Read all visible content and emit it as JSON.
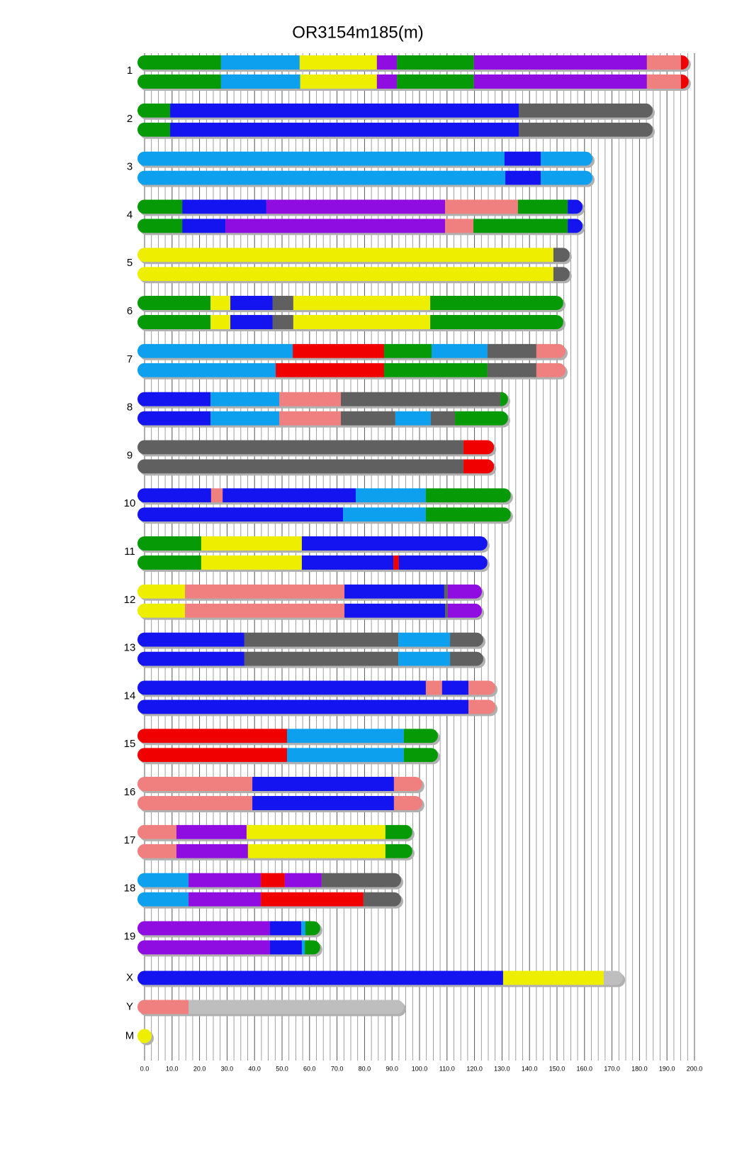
{
  "chart_data": {
    "type": "chromosome",
    "title": "OR3154m185(m)",
    "xlim": [
      0,
      200
    ],
    "xticks": [
      {
        "value": 0,
        "label": "0.0"
      },
      {
        "value": 10,
        "label": "10.0"
      },
      {
        "value": 20,
        "label": "20.0"
      },
      {
        "value": 30,
        "label": "30.0"
      },
      {
        "value": 40,
        "label": "40.0"
      },
      {
        "value": 50,
        "label": "50.0"
      },
      {
        "value": 60,
        "label": "60.0"
      },
      {
        "value": 70,
        "label": "70.0"
      },
      {
        "value": 80,
        "label": "80.0"
      },
      {
        "value": 90,
        "label": "90.0"
      },
      {
        "value": 100,
        "label": "100.0"
      },
      {
        "value": 110,
        "label": "110.0"
      },
      {
        "value": 120,
        "label": "120.0"
      },
      {
        "value": 130,
        "label": "130.0"
      },
      {
        "value": 140,
        "label": "140.0"
      },
      {
        "value": 150,
        "label": "150.0"
      },
      {
        "value": 160,
        "label": "160.0"
      },
      {
        "value": 170,
        "label": "170.0"
      },
      {
        "value": 180,
        "label": "180.0"
      },
      {
        "value": 190,
        "label": "190.0"
      },
      {
        "value": 200,
        "label": "200.0"
      }
    ],
    "minor_grid_step": 2.5,
    "chromosomes": [
      {
        "name": "1",
        "haplotypes": [
          {
            "ends": [
              27.8,
              56.4,
              84.5,
              91.8,
              119.8,
              182.7,
              195.1,
              197.9
            ],
            "colors": [
              "#079a07",
              "#0ca0ef",
              "#eeee00",
              "#8f0de0",
              "#079a07",
              "#8f0de0",
              "#f08080",
              "#f00000"
            ]
          },
          {
            "ends": [
              27.8,
              56.6,
              84.5,
              91.8,
              119.8,
              182.7,
              195.1,
              197.9
            ],
            "colors": [
              "#079a07",
              "#0ca0ef",
              "#eeee00",
              "#8f0de0",
              "#079a07",
              "#8f0de0",
              "#f08080",
              "#f00000"
            ]
          }
        ]
      },
      {
        "name": "2",
        "haplotypes": [
          {
            "ends": [
              9.3,
              136.1,
              184.8
            ],
            "colors": [
              "#079a07",
              "#1414f0",
              "#606060"
            ]
          },
          {
            "ends": [
              9.3,
              136.1,
              184.8
            ],
            "colors": [
              "#079a07",
              "#1414f0",
              "#606060"
            ]
          }
        ]
      },
      {
        "name": "3",
        "haplotypes": [
          {
            "ends": [
              130.9,
              144.1,
              162.9
            ],
            "colors": [
              "#0ca0ef",
              "#1414f0",
              "#0ca0ef"
            ]
          },
          {
            "ends": [
              131.2,
              144.1,
              162.9
            ],
            "colors": [
              "#0ca0ef",
              "#1414f0",
              "#0ca0ef"
            ]
          }
        ]
      },
      {
        "name": "4",
        "haplotypes": [
          {
            "ends": [
              13.7,
              44.3,
              109.3,
              135.8,
              153.9,
              159.3
            ],
            "colors": [
              "#079a07",
              "#1414f0",
              "#8f0de0",
              "#f08080",
              "#079a07",
              "#1414f0"
            ]
          },
          {
            "ends": [
              13.7,
              29.4,
              109.3,
              119.6,
              153.9,
              159.3
            ],
            "colors": [
              "#079a07",
              "#1414f0",
              "#8f0de0",
              "#f08080",
              "#079a07",
              "#1414f0"
            ]
          }
        ]
      },
      {
        "name": "5",
        "haplotypes": [
          {
            "ends": [
              148.7,
              154.6
            ],
            "colors": [
              "#eeee00",
              "#606060"
            ]
          },
          {
            "ends": [
              148.7,
              154.6
            ],
            "colors": [
              "#eeee00",
              "#606060"
            ]
          }
        ]
      },
      {
        "name": "6",
        "haplotypes": [
          {
            "ends": [
              24.0,
              31.2,
              46.6,
              54.1,
              103.9,
              152.3
            ],
            "colors": [
              "#079a07",
              "#eeee00",
              "#1414f0",
              "#606060",
              "#eeee00",
              "#079a07"
            ]
          },
          {
            "ends": [
              24.0,
              31.2,
              46.6,
              54.1,
              103.9,
              152.3
            ],
            "colors": [
              "#079a07",
              "#eeee00",
              "#1414f0",
              "#606060",
              "#eeee00",
              "#079a07"
            ]
          }
        ]
      },
      {
        "name": "7",
        "haplotypes": [
          {
            "ends": [
              53.9,
              87.1,
              104.4,
              124.7,
              142.5,
              153.1
            ],
            "colors": [
              "#0ca0ef",
              "#f00000",
              "#079a07",
              "#0ca0ef",
              "#606060",
              "#f08080"
            ]
          },
          {
            "ends": [
              47.7,
              87.1,
              124.7,
              142.5,
              153.1
            ],
            "colors": [
              "#0ca0ef",
              "#f00000",
              "#079a07",
              "#606060",
              "#f08080"
            ]
          }
        ]
      },
      {
        "name": "8",
        "haplotypes": [
          {
            "ends": [
              24.0,
              49.0,
              71.4,
              129.4,
              132.2
            ],
            "colors": [
              "#1414f0",
              "#0ca0ef",
              "#f08080",
              "#606060",
              "#079a07"
            ]
          },
          {
            "ends": [
              24.0,
              49.0,
              71.4,
              91.2,
              104.1,
              112.9,
              132.2
            ],
            "colors": [
              "#1414f0",
              "#0ca0ef",
              "#f08080",
              "#606060",
              "#0ca0ef",
              "#606060",
              "#079a07"
            ]
          }
        ]
      },
      {
        "name": "9",
        "haplotypes": [
          {
            "ends": [
              116.0,
              127.1
            ],
            "colors": [
              "#606060",
              "#f00000"
            ]
          },
          {
            "ends": [
              116.0,
              127.1
            ],
            "colors": [
              "#606060",
              "#f00000"
            ]
          }
        ]
      },
      {
        "name": "10",
        "haplotypes": [
          {
            "ends": [
              24.2,
              28.4,
              76.8,
              102.3,
              133.2
            ],
            "colors": [
              "#1414f0",
              "#f08080",
              "#1414f0",
              "#0ca0ef",
              "#079a07"
            ]
          },
          {
            "ends": [
              72.2,
              102.3,
              133.2
            ],
            "colors": [
              "#1414f0",
              "#0ca0ef",
              "#079a07"
            ]
          }
        ]
      },
      {
        "name": "11",
        "haplotypes": [
          {
            "ends": [
              20.6,
              57.2,
              124.7
            ],
            "colors": [
              "#079a07",
              "#eeee00",
              "#1414f0"
            ]
          },
          {
            "ends": [
              20.6,
              57.2,
              90.5,
              92.5,
              124.7
            ],
            "colors": [
              "#079a07",
              "#eeee00",
              "#1414f0",
              "#f00000",
              "#1414f0"
            ]
          }
        ]
      },
      {
        "name": "12",
        "haplotypes": [
          {
            "ends": [
              14.7,
              72.7,
              109.0,
              110.3,
              122.7
            ],
            "colors": [
              "#eeee00",
              "#f08080",
              "#1414f0",
              "#606060",
              "#8f0de0"
            ]
          },
          {
            "ends": [
              14.7,
              72.7,
              109.3,
              110.3,
              122.7
            ],
            "colors": [
              "#eeee00",
              "#f08080",
              "#1414f0",
              "#606060",
              "#8f0de0"
            ]
          }
        ]
      },
      {
        "name": "13",
        "haplotypes": [
          {
            "ends": [
              36.3,
              92.3,
              111.1,
              123.2
            ],
            "colors": [
              "#1414f0",
              "#606060",
              "#0ca0ef",
              "#606060"
            ]
          },
          {
            "ends": [
              36.3,
              92.3,
              111.1,
              123.2
            ],
            "colors": [
              "#1414f0",
              "#606060",
              "#0ca0ef",
              "#606060"
            ]
          }
        ]
      },
      {
        "name": "14",
        "haplotypes": [
          {
            "ends": [
              102.3,
              108.2,
              117.8,
              127.6
            ],
            "colors": [
              "#1414f0",
              "#f08080",
              "#1414f0",
              "#f08080"
            ]
          },
          {
            "ends": [
              117.8,
              127.6
            ],
            "colors": [
              "#1414f0",
              "#f08080"
            ]
          }
        ]
      },
      {
        "name": "15",
        "haplotypes": [
          {
            "ends": [
              51.8,
              94.3,
              106.7
            ],
            "colors": [
              "#f00000",
              "#0ca0ef",
              "#079a07"
            ]
          },
          {
            "ends": [
              51.8,
              94.3,
              106.7
            ],
            "colors": [
              "#f00000",
              "#0ca0ef",
              "#079a07"
            ]
          }
        ]
      },
      {
        "name": "16",
        "haplotypes": [
          {
            "ends": [
              39.2,
              90.7,
              101.0
            ],
            "colors": [
              "#f08080",
              "#1414f0",
              "#f08080"
            ]
          },
          {
            "ends": [
              39.2,
              90.7,
              101.0
            ],
            "colors": [
              "#f08080",
              "#1414f0",
              "#f08080"
            ]
          }
        ]
      },
      {
        "name": "17",
        "haplotypes": [
          {
            "ends": [
              11.6,
              37.1,
              87.6,
              97.4
            ],
            "colors": [
              "#f08080",
              "#8f0de0",
              "#eeee00",
              "#079a07"
            ]
          },
          {
            "ends": [
              11.6,
              37.6,
              87.6,
              97.4
            ],
            "colors": [
              "#f08080",
              "#8f0de0",
              "#eeee00",
              "#079a07"
            ]
          }
        ]
      },
      {
        "name": "18",
        "haplotypes": [
          {
            "ends": [
              16.0,
              42.3,
              51.0,
              64.4,
              93.3
            ],
            "colors": [
              "#0ca0ef",
              "#8f0de0",
              "#f00000",
              "#8f0de0",
              "#606060"
            ]
          },
          {
            "ends": [
              16.0,
              42.3,
              79.6,
              93.3
            ],
            "colors": [
              "#0ca0ef",
              "#8f0de0",
              "#f00000",
              "#606060"
            ]
          }
        ]
      },
      {
        "name": "19",
        "haplotypes": [
          {
            "ends": [
              45.6,
              57.0,
              58.5,
              63.9
            ],
            "colors": [
              "#8f0de0",
              "#1414f0",
              "#0ca0ef",
              "#079a07"
            ]
          },
          {
            "ends": [
              45.6,
              57.2,
              58.3,
              63.9
            ],
            "colors": [
              "#8f0de0",
              "#1414f0",
              "#0ca0ef",
              "#079a07"
            ]
          }
        ]
      },
      {
        "name": "X",
        "haplotypes": [
          {
            "ends": [
              130.4,
              167.0,
              174.0
            ],
            "colors": [
              "#1414f0",
              "#eeee00",
              "#bebebe"
            ]
          }
        ]
      },
      {
        "name": "Y",
        "haplotypes": [
          {
            "ends": [
              16.0,
              94.3
            ],
            "colors": [
              "#f08080",
              "#bebebe"
            ]
          }
        ]
      },
      {
        "name": "M",
        "haplotypes": [
          {
            "ends": [
              2.5
            ],
            "colors": [
              "#eeee00"
            ]
          }
        ]
      }
    ]
  }
}
